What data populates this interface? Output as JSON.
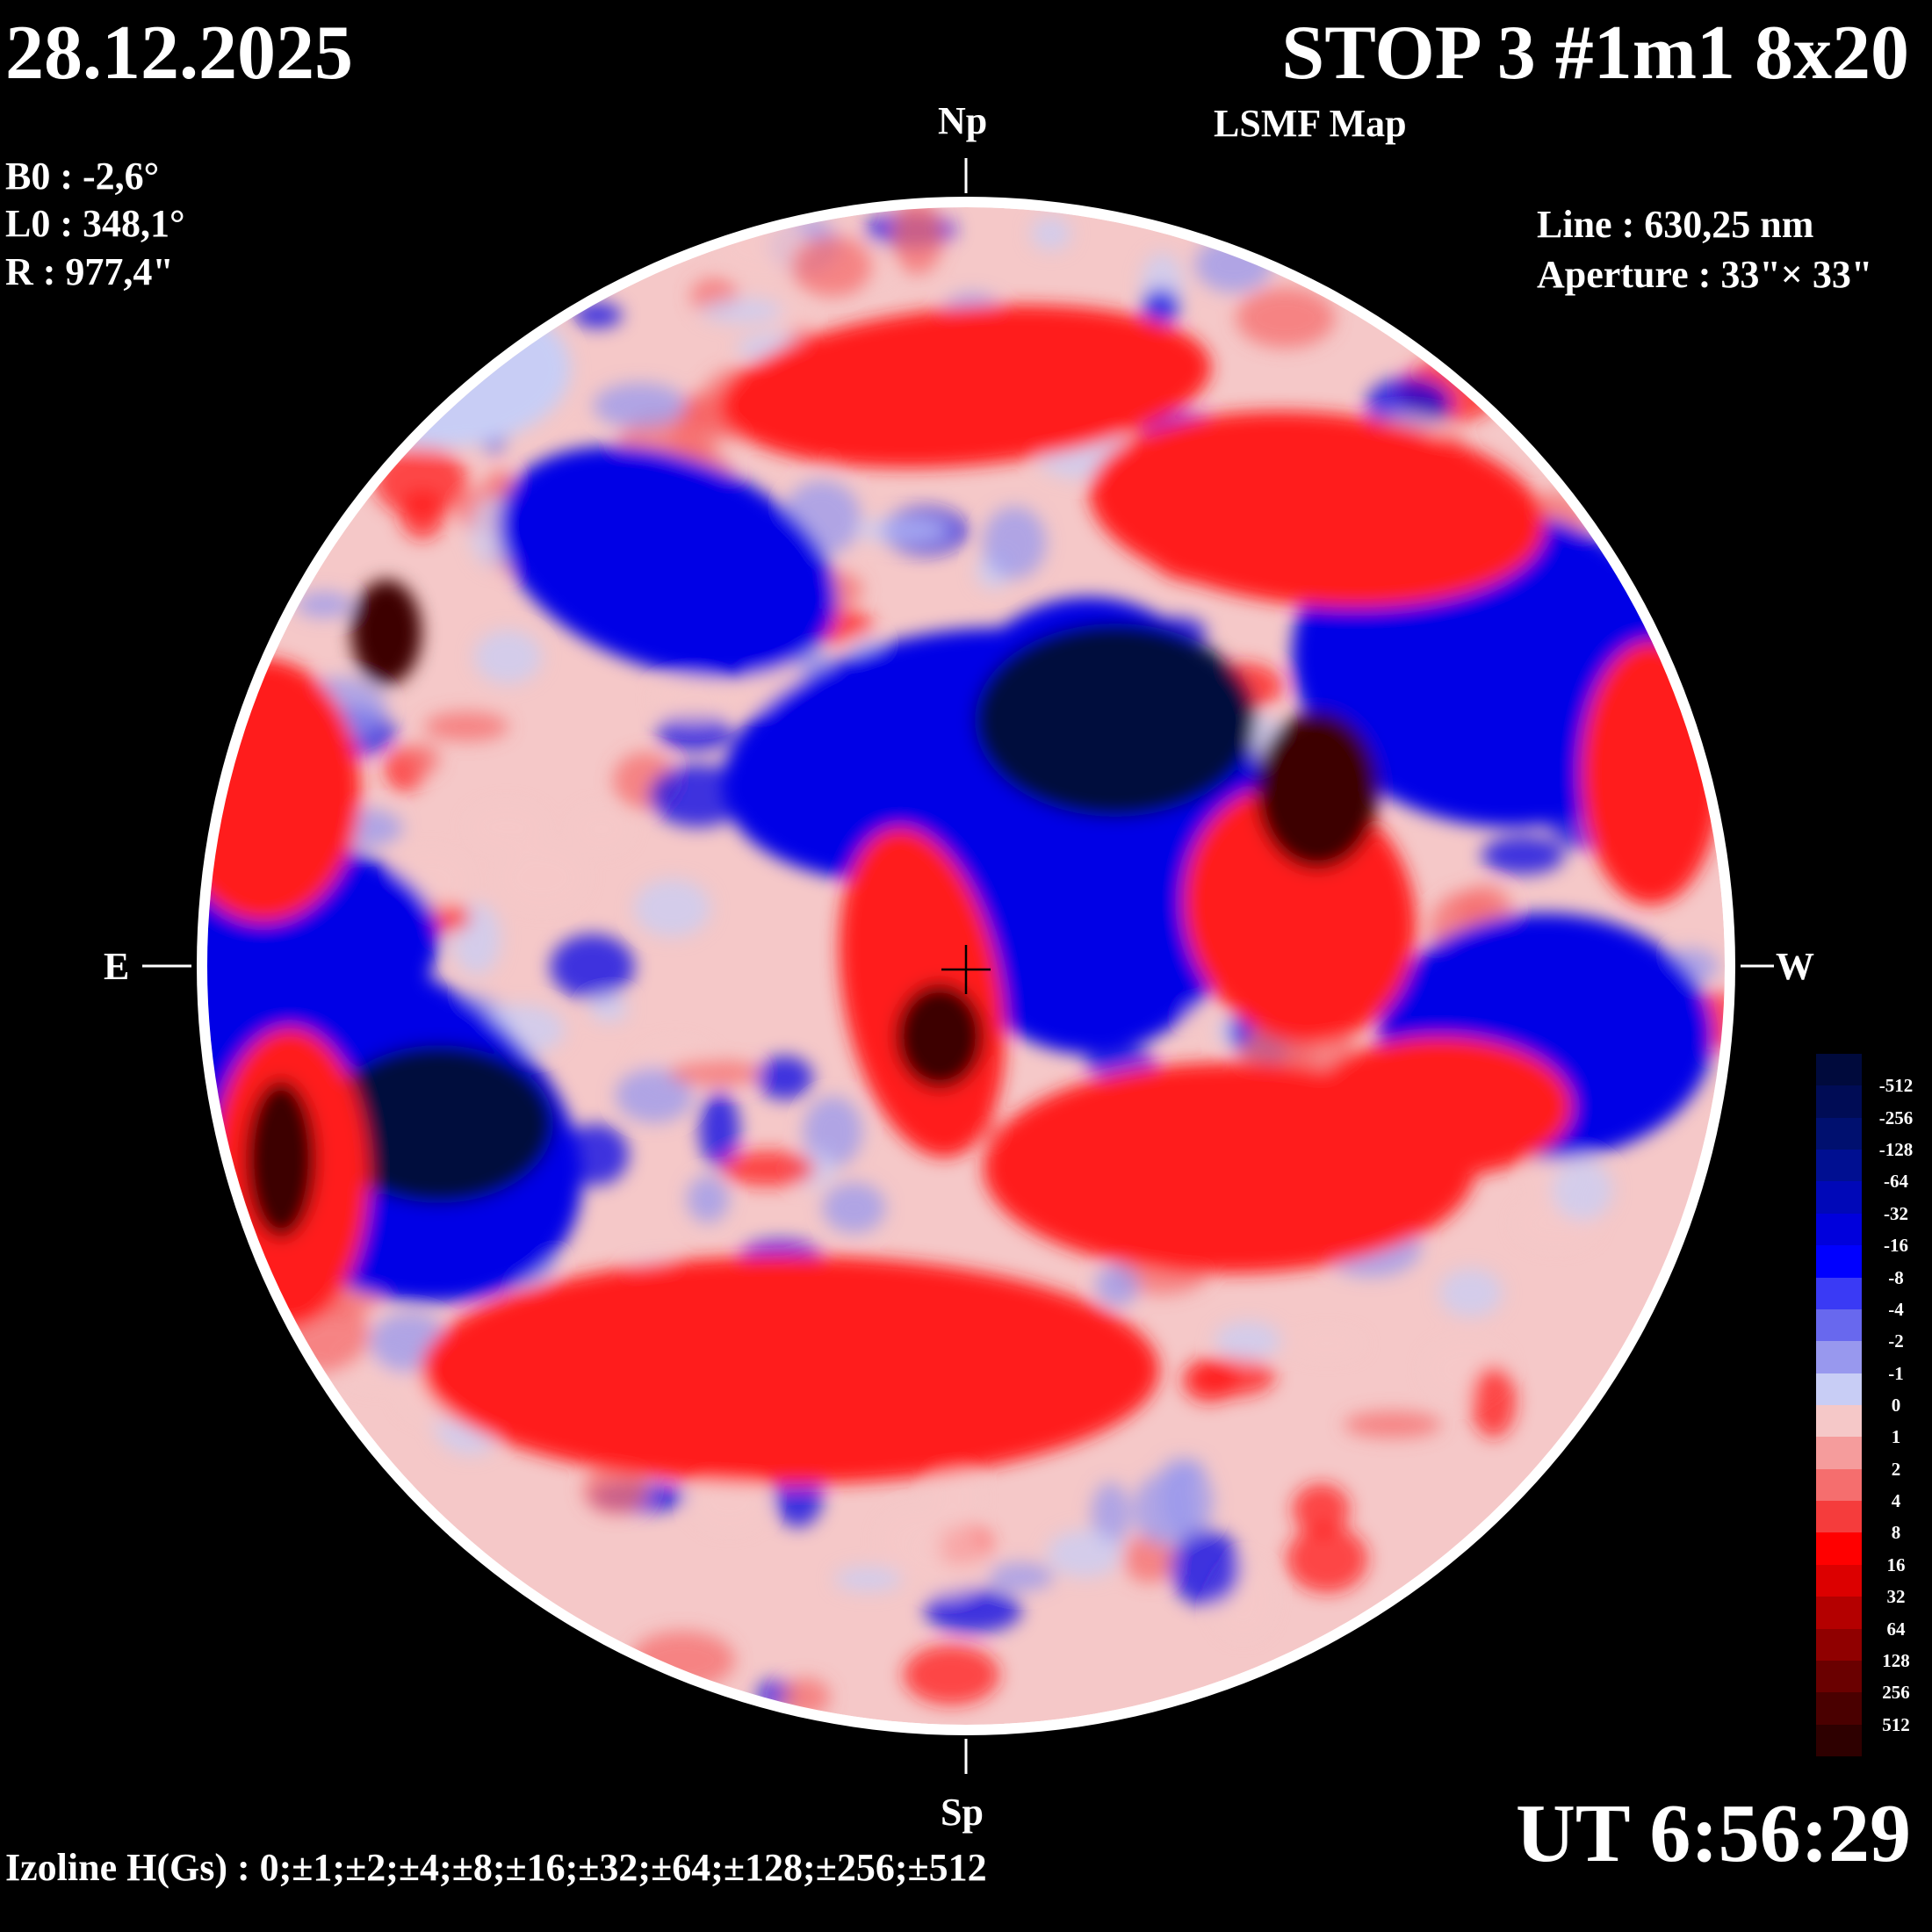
{
  "header": {
    "date": "28.12.2025",
    "title": "STOP 3 #1m1 8x20",
    "subtitle": "LSMF  Map"
  },
  "parameters": {
    "b0": "B0 : -2,6°",
    "l0": "L0 : 348,1°",
    "r": "R  : 977,4\""
  },
  "instrument": {
    "line": "Line :  630,25 nm",
    "aperture": "Aperture : 33\"× 33\""
  },
  "directions": {
    "north": "Np",
    "south": "Sp",
    "east": "E",
    "west": "W"
  },
  "time": "UT 6:56:29",
  "izoline": "Izoline H(Gs) : 0;±1;±2;±4;±8;±16;±32;±64;±128;±256;±512",
  "colors": {
    "background": "#000000",
    "isoline": "#ffffff",
    "negative_strong": "#000a3c",
    "negative_mid": "#0000e6",
    "negative_weak": "#c8cdf5",
    "positive_weak": "#f5c8c8",
    "positive_mid": "#ff1a1a",
    "positive_strong": "#3c0000"
  },
  "colorbar": {
    "labels": [
      "-512",
      "-256",
      "-128",
      "-64",
      "-32",
      "-16",
      "-8",
      "-4",
      "-2",
      "-1",
      "0",
      "1",
      "2",
      "4",
      "8",
      "16",
      "32",
      "64",
      "128",
      "256",
      "512"
    ],
    "colors": [
      "#000a3c",
      "#000c55",
      "#00106f",
      "#000f91",
      "#0008b8",
      "#0000dc",
      "#0000ff",
      "#3a3af5",
      "#6868ee",
      "#9898ee",
      "#c8cdf5",
      "#f5c8c8",
      "#f59c9c",
      "#f56e6e",
      "#f53c3c",
      "#ff0000",
      "#dc0000",
      "#b40000",
      "#900000",
      "#6a0000",
      "#4a0000",
      "#2e0000"
    ]
  }
}
